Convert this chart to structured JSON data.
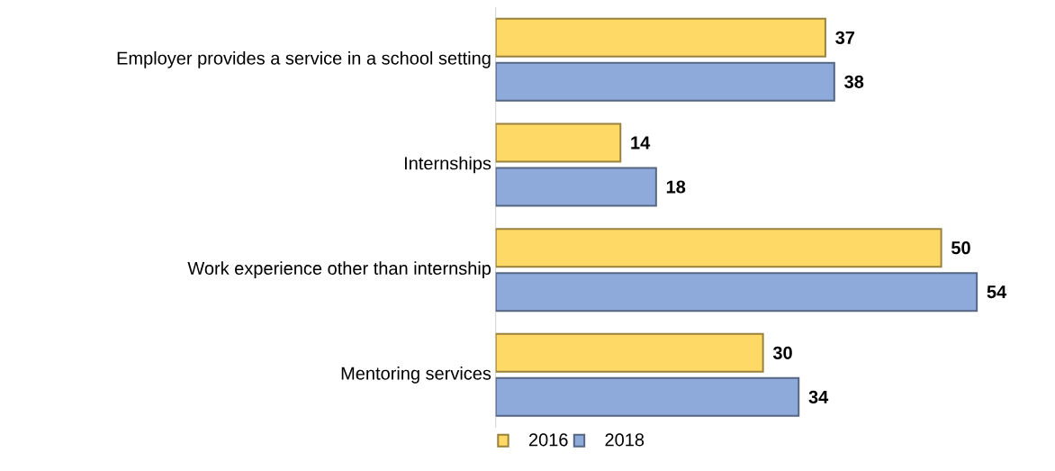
{
  "chart_data": {
    "type": "bar",
    "orientation": "horizontal",
    "data_labels": true,
    "legend": "bottom",
    "categories": [
      "Employer provides a service in a school setting",
      "Internships",
      "Work experience other than internship",
      "Mentoring services"
    ],
    "series": [
      {
        "name": "2016",
        "color": "#ffd966",
        "values": [
          37,
          14,
          50,
          30
        ]
      },
      {
        "name": "2018",
        "color": "#8eaadb",
        "values": [
          38,
          18,
          54,
          34
        ]
      }
    ]
  }
}
